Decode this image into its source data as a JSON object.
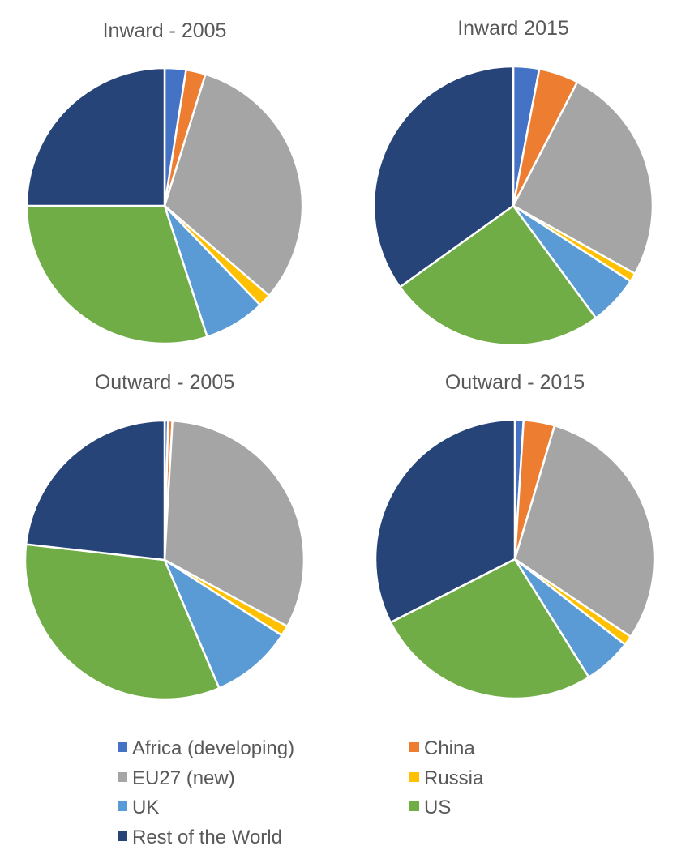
{
  "categories": [
    "Africa (developing)",
    "China",
    "EU27 (new)",
    "Russia",
    "UK",
    "US",
    "Rest of the World"
  ],
  "colors": [
    "#4472C4",
    "#ED7D31",
    "#A5A5A5",
    "#FFC000",
    "#5B9BD5",
    "#70AD47",
    "#264478"
  ],
  "chart_data": [
    {
      "type": "pie",
      "title": "Inward - 2005",
      "categories": [
        "Africa (developing)",
        "China",
        "EU27 (new)",
        "Russia",
        "UK",
        "US",
        "Rest of the World"
      ],
      "values": [
        2.5,
        2.3,
        31.5,
        1.5,
        7.2,
        30.0,
        25.0
      ]
    },
    {
      "type": "pie",
      "title": "Inward 2015",
      "categories": [
        "Africa (developing)",
        "China",
        "EU27 (new)",
        "Russia",
        "UK",
        "US",
        "Rest of the World"
      ],
      "values": [
        3.0,
        4.6,
        25.5,
        1.0,
        5.8,
        25.2,
        34.9
      ]
    },
    {
      "type": "pie",
      "title": "Outward - 2005",
      "categories": [
        "Africa (developing)",
        "China",
        "EU27 (new)",
        "Russia",
        "UK",
        "US",
        "Rest of the World"
      ],
      "values": [
        0.4,
        0.5,
        32.0,
        1.2,
        9.5,
        33.2,
        23.2
      ]
    },
    {
      "type": "pie",
      "title": "Outward - 2015",
      "categories": [
        "Africa (developing)",
        "China",
        "EU27 (new)",
        "Russia",
        "UK",
        "US",
        "Rest of the World"
      ],
      "values": [
        1.0,
        3.6,
        29.8,
        1.1,
        5.6,
        26.4,
        32.5
      ]
    }
  ]
}
